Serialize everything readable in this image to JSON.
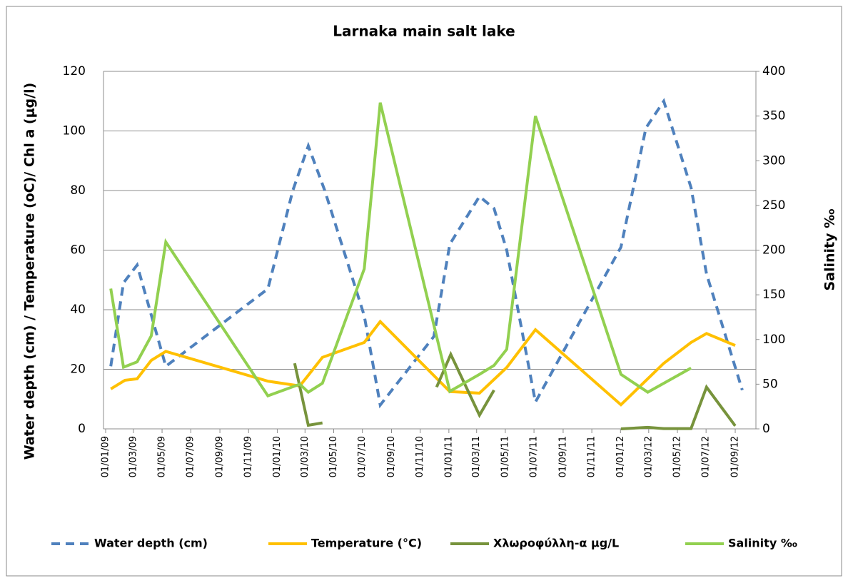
{
  "chart_data": {
    "type": "line",
    "title": "Larnaka main salt lake",
    "y_label": "Water depth (cm)  /  Temperature (oC)/ Chl a (μg/l)",
    "y2_label": "Salinity  ‰",
    "xlim": [
      "2009-01-01",
      "2012-10-15"
    ],
    "xticks": [
      {
        "value": "2009-01-01",
        "label": "01/01/09"
      },
      {
        "value": "2009-03-01",
        "label": "01/03/09"
      },
      {
        "value": "2009-05-01",
        "label": "01/05/09"
      },
      {
        "value": "2009-07-01",
        "label": "01/07/09"
      },
      {
        "value": "2009-09-01",
        "label": "01/09/09"
      },
      {
        "value": "2009-11-01",
        "label": "01/11/09"
      },
      {
        "value": "2010-01-01",
        "label": "01/01/10"
      },
      {
        "value": "2010-03-01",
        "label": "01/03/10"
      },
      {
        "value": "2010-05-01",
        "label": "01/05/10"
      },
      {
        "value": "2010-07-01",
        "label": "01/07/10"
      },
      {
        "value": "2010-09-01",
        "label": "01/09/10"
      },
      {
        "value": "2010-11-01",
        "label": "01/11/10"
      },
      {
        "value": "2011-01-01",
        "label": "01/01/11"
      },
      {
        "value": "2011-03-01",
        "label": "01/03/11"
      },
      {
        "value": "2011-05-01",
        "label": "01/05/11"
      },
      {
        "value": "2011-07-01",
        "label": "01/07/11"
      },
      {
        "value": "2011-09-01",
        "label": "01/09/11"
      },
      {
        "value": "2011-11-01",
        "label": "01/11/11"
      },
      {
        "value": "2012-01-01",
        "label": "01/01/12"
      },
      {
        "value": "2012-03-01",
        "label": "01/03/12"
      },
      {
        "value": "2012-05-01",
        "label": "01/05/12"
      },
      {
        "value": "2012-07-01",
        "label": "01/07/12"
      },
      {
        "value": "2012-09-01",
        "label": "01/09/12"
      }
    ],
    "ylim": [
      0,
      120
    ],
    "yticks": [
      0,
      20,
      40,
      60,
      80,
      100,
      120
    ],
    "y2lim": [
      0,
      400
    ],
    "y2ticks": [
      0,
      50,
      100,
      150,
      200,
      250,
      300,
      350,
      400
    ],
    "grid": true,
    "legend": "bottom",
    "series": [
      {
        "name": "Water depth (cm)",
        "color": "#4f81bd",
        "style": "dashed",
        "x": [
          "2009-01-12",
          "2009-02-08",
          "2009-03-09",
          "2009-05-09",
          "2009-12-12",
          "2010-02-03",
          "2010-03-08",
          "2010-04-12",
          "2010-07-05",
          "2010-08-08",
          "2010-11-30",
          "2011-01-03",
          "2011-03-07",
          "2011-04-07",
          "2011-05-04",
          "2011-07-04",
          "2012-01-02",
          "2012-02-24",
          "2012-04-02",
          "2012-05-30",
          "2012-07-02",
          "2012-09-16"
        ],
        "values": [
          21,
          49,
          55,
          21,
          47,
          80,
          95,
          80,
          38,
          8,
          31,
          62,
          78,
          74,
          60,
          9,
          61,
          101,
          110,
          81,
          52,
          13
        ]
      },
      {
        "name": "Temperature (°C)",
        "color": "#ffc000",
        "style": "solid",
        "x": [
          "2009-01-12",
          "2009-02-11",
          "2009-03-09",
          "2009-04-08",
          "2009-05-09",
          "2009-12-12",
          "2010-02-18",
          "2010-03-08",
          "2010-04-07",
          "2010-07-05",
          "2010-08-08",
          "2011-01-03",
          "2011-03-07",
          "2011-05-04",
          "2011-07-04",
          "2012-01-02",
          "2012-04-02",
          "2012-05-30",
          "2012-07-02",
          "2012-09-01"
        ],
        "values": [
          13.4,
          16.3,
          16.8,
          23,
          26,
          16,
          14.4,
          18,
          24,
          29,
          36,
          12.5,
          12,
          20.6,
          33.3,
          8.1,
          22,
          29,
          32,
          28
        ]
      },
      {
        "name": "Χλωροφύλλη-α μg/L",
        "color": "#77933c",
        "style": "solid",
        "x": [
          "2010-02-07",
          "2010-03-08",
          "2010-04-07",
          null,
          "2010-12-06",
          "2011-01-05",
          "2011-03-07",
          "2011-04-07",
          null,
          "2012-01-02",
          "2012-02-28",
          "2012-04-02",
          "2012-05-30",
          "2012-07-02",
          "2012-09-01"
        ],
        "values": [
          22,
          1.2,
          2,
          null,
          14,
          25,
          4.6,
          13,
          null,
          0,
          0.5,
          0.1,
          0.1,
          14,
          1
        ]
      },
      {
        "name": "Salinity  ‰",
        "color": "#92d050",
        "style": "solid",
        "axis": "y2",
        "x": [
          "2009-01-12",
          "2009-02-08",
          "2009-03-09",
          "2009-04-08",
          "2009-05-09",
          "2009-12-12",
          "2010-02-18",
          "2010-03-08",
          "2010-04-07",
          "2010-07-05",
          "2010-08-08",
          "2011-01-03",
          "2011-03-07",
          "2011-04-07",
          "2011-05-04",
          "2011-07-04",
          "2012-01-02",
          "2012-02-28",
          "2012-05-30"
        ],
        "values": [
          157,
          69,
          75,
          104,
          209,
          37,
          50,
          41,
          51,
          179,
          365,
          42,
          61,
          71,
          89,
          350,
          61,
          41,
          68
        ]
      }
    ]
  }
}
